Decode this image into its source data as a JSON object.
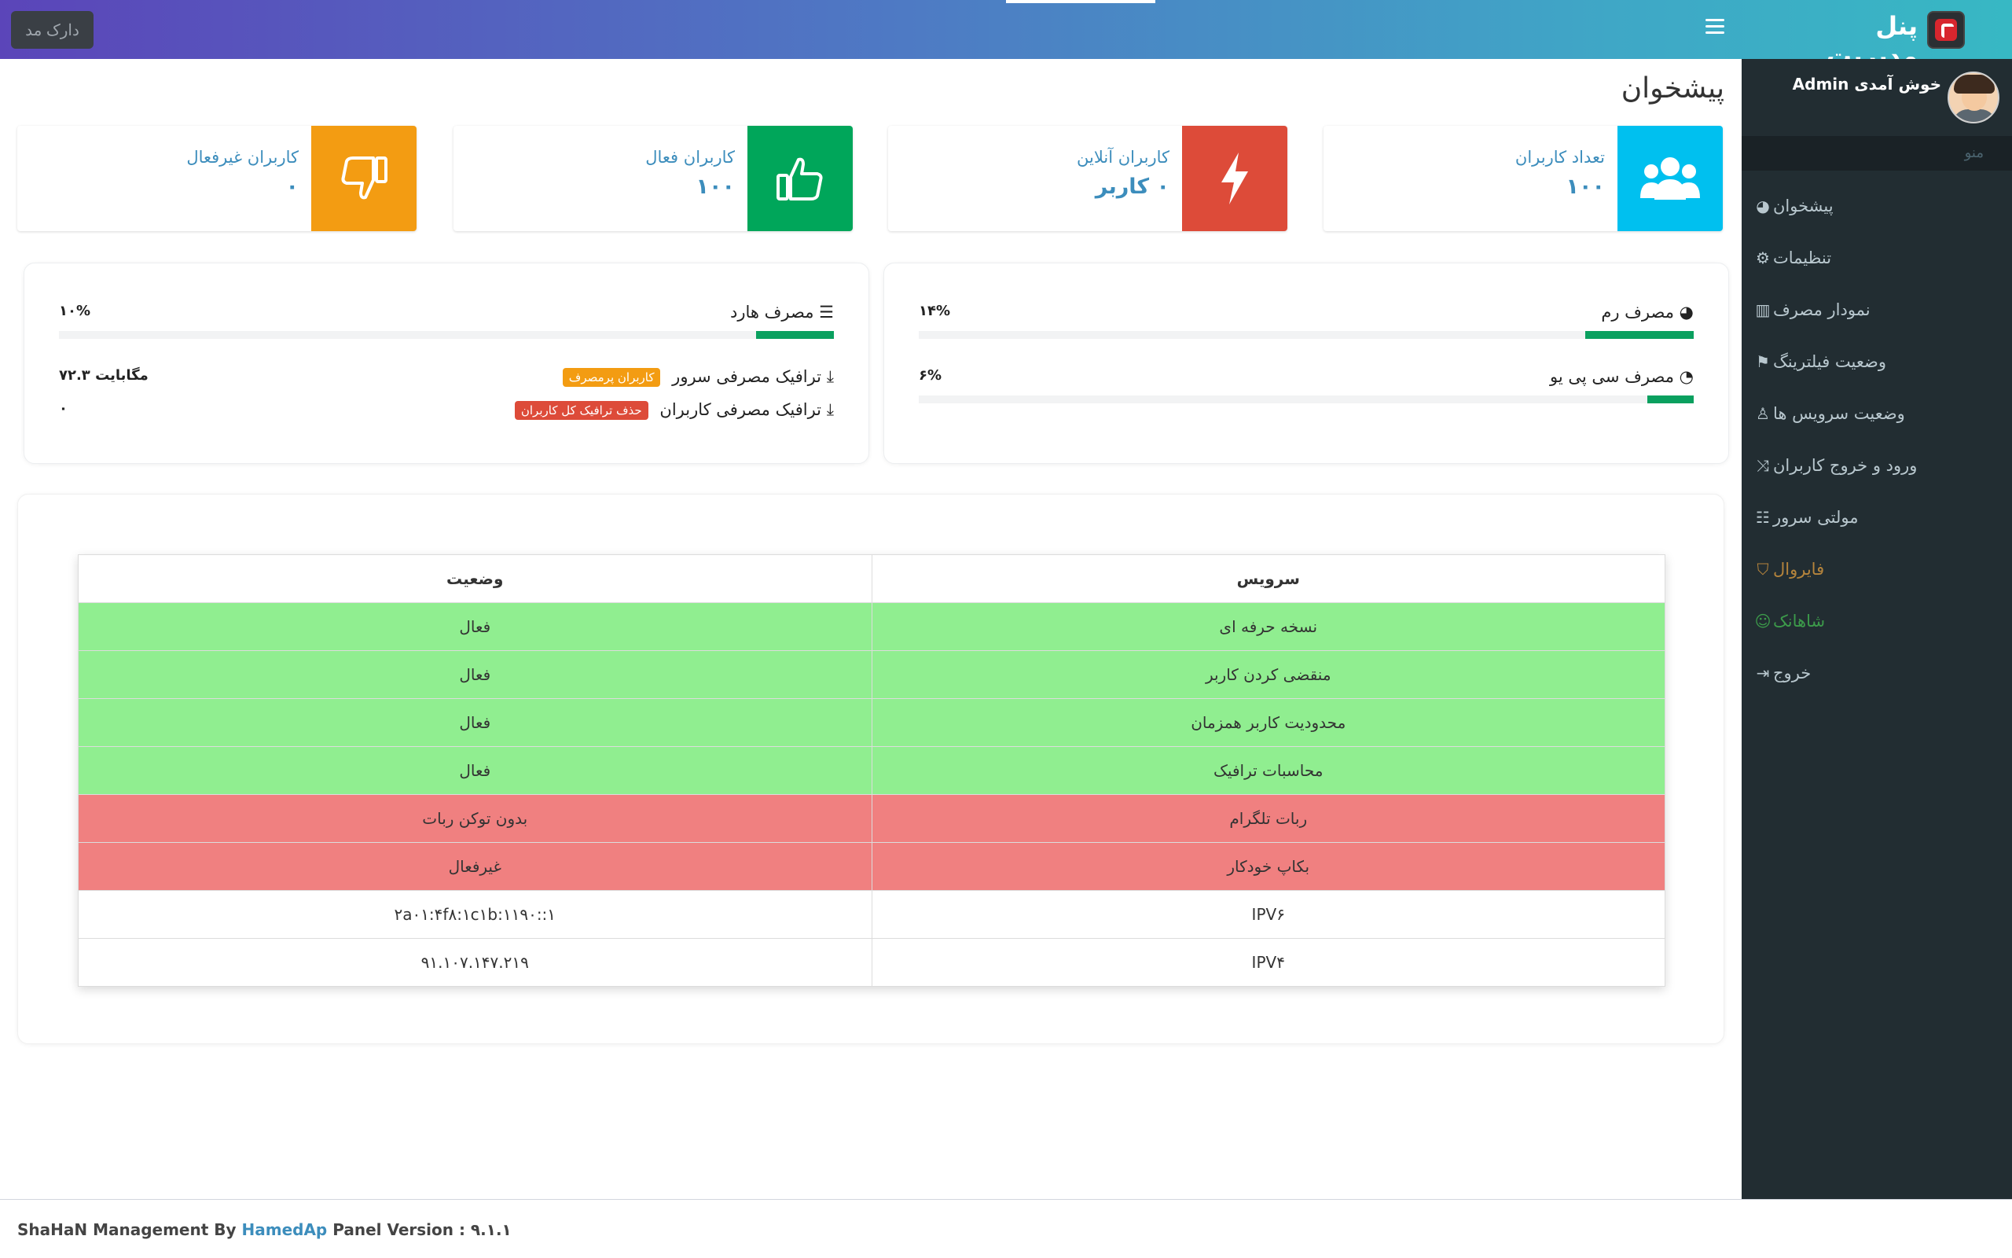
{
  "header": {
    "brand_title": "پنل مدیریت",
    "dark_mode_label": "دارک مد"
  },
  "user": {
    "welcome": "خوش آمدی Admin"
  },
  "sidebar": {
    "menu_header": "منو",
    "items": [
      {
        "label": "پیشخوان",
        "icon": "dashboard-icon",
        "color": "#b8c7ce"
      },
      {
        "label": "تنظیمات",
        "icon": "gear-icon",
        "color": "#b8c7ce"
      },
      {
        "label": "نمودار مصرف",
        "icon": "bar-chart-icon",
        "color": "#b8c7ce"
      },
      {
        "label": "وضعیت فیلترینگ",
        "icon": "flag-icon",
        "color": "#b8c7ce"
      },
      {
        "label": "وضعیت سرویس ها",
        "icon": "linux-icon",
        "color": "#b8c7ce"
      },
      {
        "label": "ورود و خروج کاربران",
        "icon": "shuffle-icon",
        "color": "#b8c7ce"
      },
      {
        "label": "مولتی سرور",
        "icon": "sitemap-icon",
        "color": "#b8c7ce"
      },
      {
        "label": "فایروال",
        "icon": "shield-icon",
        "color": "#b5843c"
      },
      {
        "label": "شاهانک",
        "icon": "smile-icon",
        "color": "#3c9a4a"
      },
      {
        "label": "خروج",
        "icon": "sign-out-icon",
        "color": "#b8c7ce"
      }
    ]
  },
  "page": {
    "title": "پیشخوان"
  },
  "info_boxes": [
    {
      "label": "تعداد کاربران",
      "value": "۱۰۰",
      "color": "#00c0ef",
      "icon": "users-icon"
    },
    {
      "label": "کاربران آنلاین",
      "value": "۰ کاربر",
      "color": "#dd4b39",
      "icon": "bolt-icon"
    },
    {
      "label": "کاربران فعال",
      "value": "۱۰۰",
      "color": "#00a65a",
      "icon": "thumbs-up-icon"
    },
    {
      "label": "کاربران غیرفعال",
      "value": "۰",
      "color": "#f39c12",
      "icon": "thumbs-down-icon"
    }
  ],
  "usage": {
    "ram": {
      "label": "مصرف رم",
      "value": "۱۴%",
      "fraction": 0.14
    },
    "cpu": {
      "label": "مصرف سی پی یو",
      "value": "۶%",
      "fraction": 0.06
    },
    "disk": {
      "label": "مصرف هارد",
      "value": "۱۰%",
      "fraction": 0.1
    },
    "server_traffic": {
      "label": "ترافیک مصرفی سرور",
      "badge": "کاربران پرمصرف",
      "value": "۷۲.۳ مگابایت"
    },
    "users_traffic": {
      "label": "ترافیک مصرفی کاربران",
      "badge": "حذف ترافیک کل کاربران",
      "value": "۰"
    }
  },
  "services_table": {
    "headers": {
      "service": "سرویس",
      "status": "وضعیت"
    },
    "rows": [
      {
        "service": "نسخه حرفه ای",
        "status": "فعال",
        "state": "ok"
      },
      {
        "service": "منقضی کردن کاربر",
        "status": "فعال",
        "state": "ok"
      },
      {
        "service": "محدودیت کاربر همزمان",
        "status": "فعال",
        "state": "ok"
      },
      {
        "service": "محاسبات ترافیک",
        "status": "فعال",
        "state": "ok"
      },
      {
        "service": "ربات تلگرام",
        "status": "بدون توکن ربات",
        "state": "bad"
      },
      {
        "service": "بکاپ خودکار",
        "status": "غیرفعال",
        "state": "bad"
      },
      {
        "service": "IPV۶",
        "status": "۲a۰۱:۴f۸:۱c۱b:۱۱۹۰::۱",
        "state": "info"
      },
      {
        "service": "IPV۴",
        "status": "۹۱.۱۰۷.۱۴۷.۲۱۹",
        "state": "info"
      }
    ],
    "state_colors": {
      "ok": "#90ee90",
      "bad": "#f08080",
      "info": "#ffffff"
    }
  },
  "footer": {
    "prefix": "ShaHaN Management By ",
    "author": "HamedAp",
    "version": " Panel Version : ۹.۱.۱"
  }
}
